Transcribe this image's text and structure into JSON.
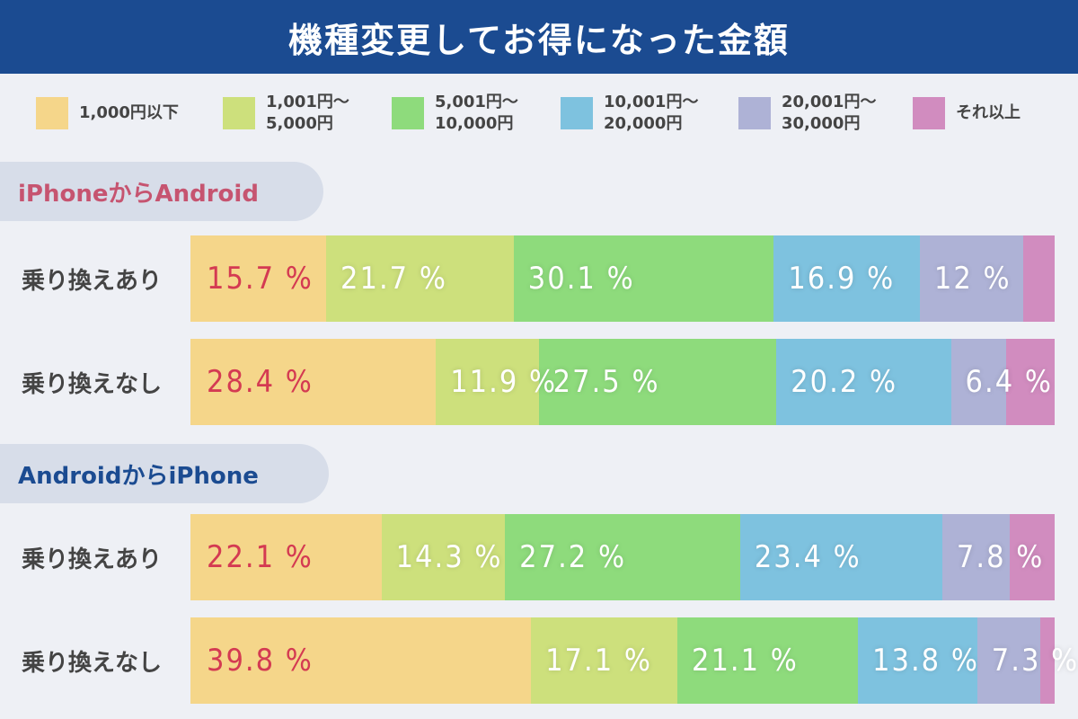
{
  "title": "機種変更してお得になった金額",
  "legend": [
    {
      "lines": [
        "1,000円以下"
      ],
      "color": "#f5d68a"
    },
    {
      "lines": [
        "1,001円〜",
        "5,000円"
      ],
      "color": "#cde07c"
    },
    {
      "lines": [
        "5,001円〜",
        "10,000円"
      ],
      "color": "#8edb7c"
    },
    {
      "lines": [
        "10,001円〜",
        "20,000円"
      ],
      "color": "#7ec2df"
    },
    {
      "lines": [
        "20,001円〜",
        "30,000円"
      ],
      "color": "#aeb2d6"
    },
    {
      "lines": [
        "それ以上"
      ],
      "color": "#d18cbf"
    }
  ],
  "chart_data": {
    "type": "bar",
    "stacked": true,
    "orientation": "horizontal",
    "title": "機種変更してお得になった金額",
    "unit": "%",
    "series_names": [
      "1,000円以下",
      "1,001円〜5,000円",
      "5,001円〜10,000円",
      "10,001円〜20,000円",
      "20,001円〜30,000円",
      "それ以上"
    ],
    "sections": [
      {
        "name": "iPhoneからAndroid",
        "rows": [
          {
            "label": "乗り換えあり",
            "values": [
              15.7,
              21.7,
              30.1,
              16.9,
              12,
              3.6
            ],
            "value_labels": [
              "15.7 %",
              "21.7 %",
              "30.1 %",
              "16.9 %",
              "12 %",
              ""
            ]
          },
          {
            "label": "乗り換えなし",
            "values": [
              28.4,
              11.9,
              27.5,
              20.2,
              6.4,
              5.6
            ],
            "value_labels": [
              "28.4 %",
              "11.9 %",
              "27.5 %",
              "20.2 %",
              "6.4 %",
              ""
            ]
          }
        ]
      },
      {
        "name": "AndroidからiPhone",
        "rows": [
          {
            "label": "乗り換えあり",
            "values": [
              22.1,
              14.3,
              27.2,
              23.4,
              7.8,
              5.2
            ],
            "value_labels": [
              "22.1 %",
              "14.3 %",
              "27.2 %",
              "23.4 %",
              "7.8 %",
              ""
            ]
          },
          {
            "label": "乗り換えなし",
            "values": [
              39.8,
              17.1,
              21.1,
              13.8,
              7.3,
              0.9
            ],
            "value_labels": [
              "39.8 %",
              "17.1 %",
              "21.1 %",
              "13.8 %",
              "7.3 %",
              ""
            ]
          }
        ]
      }
    ]
  }
}
